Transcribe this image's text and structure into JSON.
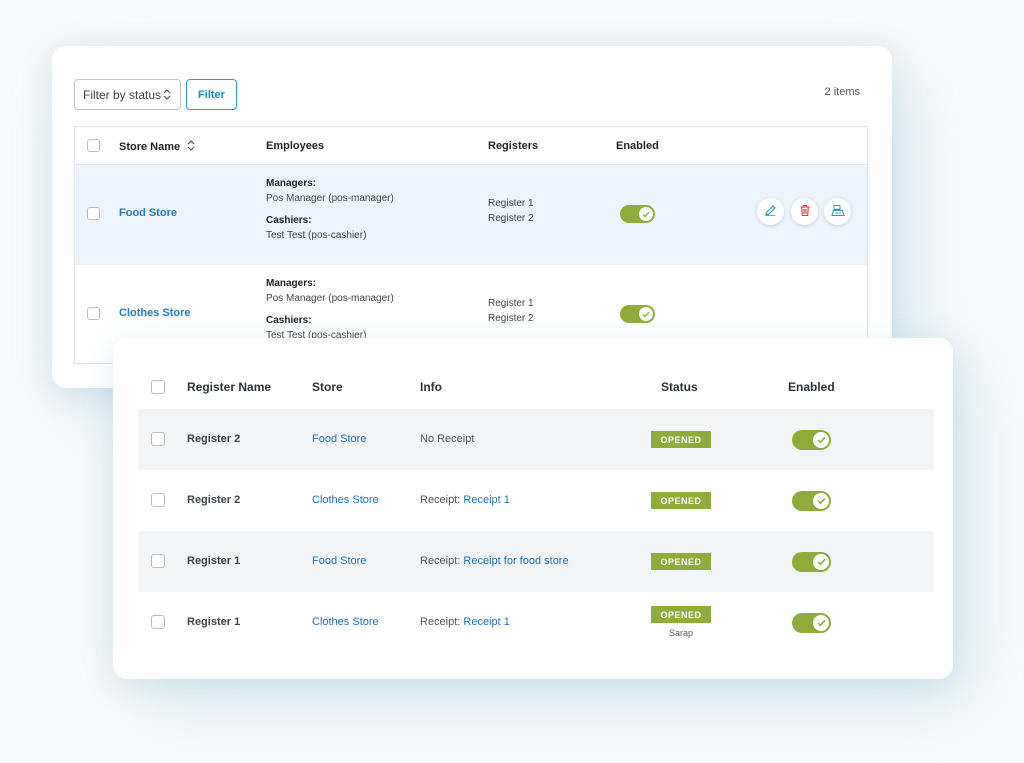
{
  "stores_panel": {
    "filter_select": {
      "label": "Filter by status",
      "icon": "chevron-updown-icon"
    },
    "filter_button": {
      "label": "Filter"
    },
    "items_count": "2 items",
    "columns": {
      "store_name": "Store Name",
      "employees": "Employees",
      "registers": "Registers",
      "enabled": "Enabled"
    },
    "rows": [
      {
        "store_name": "Food Store",
        "managers_label": "Managers:",
        "managers": "Pos Manager (pos-manager)",
        "cashiers_label": "Cashiers:",
        "cashiers": "Test Test (pos-cashier)",
        "registers": [
          "Register 1",
          "Register 2"
        ],
        "enabled": true,
        "actions": [
          "edit-icon",
          "delete-icon",
          "register-icon"
        ]
      },
      {
        "store_name": "Clothes Store",
        "managers_label": "Managers:",
        "managers": "Pos Manager (pos-manager)",
        "cashiers_label": "Cashiers:",
        "cashiers": "Test Test (pos-cashier)",
        "registers": [
          "Register 1",
          "Register 2"
        ],
        "enabled": true
      }
    ]
  },
  "registers_panel": {
    "columns": {
      "register_name": "Register Name",
      "store": "Store",
      "info": "Info",
      "status": "Status",
      "enabled": "Enabled"
    },
    "rows": [
      {
        "register_name": "Register 2",
        "store": "Food Store",
        "info_text": "No Receipt",
        "info_link": "",
        "status": "OPENED",
        "status_user": "",
        "enabled": true
      },
      {
        "register_name": "Register 2",
        "store": "Clothes Store",
        "info_text": "Receipt:",
        "info_link": "Receipt 1",
        "status": "OPENED",
        "status_user": "",
        "enabled": true
      },
      {
        "register_name": "Register 1",
        "store": "Food Store",
        "info_text": "Receipt:",
        "info_link": "Receipt for food store",
        "status": "OPENED",
        "status_user": "",
        "enabled": true
      },
      {
        "register_name": "Register 1",
        "store": "Clothes Store",
        "info_text": "Receipt:",
        "info_link": "Receipt 1",
        "status": "OPENED",
        "status_user": "Sarap",
        "enabled": true
      }
    ]
  },
  "colors": {
    "accent_blue": "#2271b1",
    "toggle_green": "#8fab3a",
    "badge_green": "#8fab3a",
    "delete_red": "#d63638",
    "row_highlight": "#edf4fb"
  }
}
